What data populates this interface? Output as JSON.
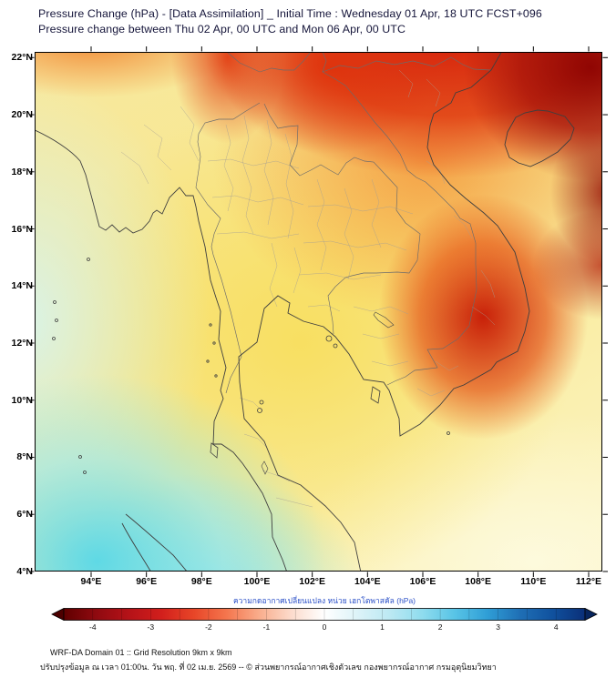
{
  "header": {
    "title_line1": "Pressure Change (hPa) - [Data Assimilation] _ Initial Time : Wednesday 01 Apr, 18 UTC FCST+096",
    "title_line2": "Pressure change between Thu 02 Apr, 00 UTC and Mon 06 Apr, 00 UTC"
  },
  "map": {
    "lat_labels": [
      "22°N",
      "20°N",
      "18°N",
      "16°N",
      "14°N",
      "12°N",
      "10°N",
      "8°N",
      "6°N",
      "4°N"
    ],
    "lon_labels": [
      "94°E",
      "96°E",
      "98°E",
      "100°E",
      "102°E",
      "104°E",
      "106°E",
      "108°E",
      "110°E",
      "112°E"
    ]
  },
  "colorbar": {
    "label": "ความกดอากาศเปลี่ยนแปลง หน่วย เฮกโตพาสคัล (hPa)",
    "tick_labels": [
      "-4",
      "-3",
      "-2",
      "-1",
      "0",
      "1",
      "2",
      "3",
      "4"
    ],
    "gradient": [
      "#600000",
      "#8f0a10",
      "#b51218",
      "#d21f1c",
      "#e84628",
      "#f4764e",
      "#f9ad8c",
      "#fcdccd",
      "#ffffff",
      "#ddf3f8",
      "#bce9f3",
      "#8fdcee",
      "#58c4e6",
      "#2f9ed6",
      "#1f6fb5",
      "#10519e",
      "#0a2f78"
    ],
    "left_arrow_color": "#4d0000",
    "right_arrow_color": "#07255e"
  },
  "footer": {
    "line1": "WRF-DA Domain 01 :: Grid Resolution 9km x 9km",
    "line2": "ปรับปรุงข้อมูล ณ เวลา 01:00น. วัน พฤ. ที่ 02 เม.ย. 2569 -- © ส่วนพยากรณ์อากาศเชิงตัวเลข กองพยากรณ์อากาศ กรมอุตุนิยมวิทยา"
  },
  "chart_data": {
    "type": "heatmap",
    "title": "Pressure Change (hPa) - [Data Assimilation] _ Initial Time : Wednesday 01 Apr, 18 UTC FCST+096",
    "subtitle": "Pressure change between Thu 02 Apr, 00 UTC and Mon 06 Apr, 00 UTC",
    "x_axis": {
      "label": "longitude",
      "ticks": [
        "94°E",
        "96°E",
        "98°E",
        "100°E",
        "102°E",
        "104°E",
        "106°E",
        "108°E",
        "110°E",
        "112°E"
      ],
      "range": [
        "94°E",
        "112°E"
      ]
    },
    "y_axis": {
      "label": "latitude",
      "ticks": [
        "22°N",
        "20°N",
        "18°N",
        "16°N",
        "14°N",
        "12°N",
        "10°N",
        "8°N",
        "6°N",
        "4°N"
      ],
      "range": [
        "4°N",
        "22°N"
      ]
    },
    "colorbar": {
      "label": "ความกดอากาศเปลี่ยนแปลง หน่วย เฮกโตพาสคัล (hPa)",
      "units": "hPa",
      "ticks": [
        -4,
        -3,
        -2,
        -1,
        0,
        1,
        2,
        3,
        4
      ],
      "negative_end_color": "dark red (left)",
      "positive_end_color": "dark blue (right)"
    },
    "approx_field_readings_hpa": [
      {
        "lon": "108°E",
        "lat": "21°N",
        "value": -4
      },
      {
        "lon": "111°E",
        "lat": "17°N",
        "value": -4
      },
      {
        "lon": "108°E",
        "lat": "13°N",
        "value": -3.5
      },
      {
        "lon": "103°E",
        "lat": "20°N",
        "value": -2.5
      },
      {
        "lon": "102°E",
        "lat": "16°N",
        "value": -2
      },
      {
        "lon": "101°E",
        "lat": "13°N",
        "value": -1
      },
      {
        "lon": "95°E",
        "lat": "13°N",
        "value": 0
      },
      {
        "lon": "97°E",
        "lat": "5°N",
        "value": 1
      },
      {
        "lon": "107°E",
        "lat": "6°N",
        "value": -0.5
      }
    ]
  }
}
